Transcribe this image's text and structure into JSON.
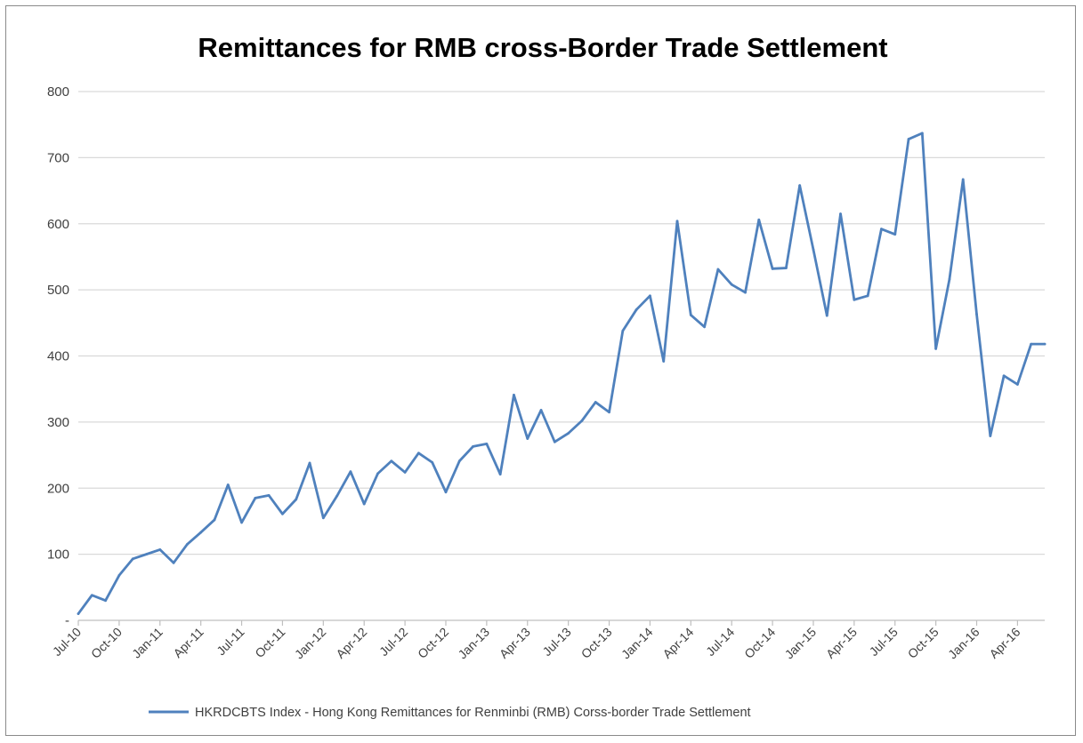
{
  "chart_data": {
    "type": "line",
    "title": "Remittances for RMB cross-Border Trade Settlement",
    "ylim": [
      0,
      800
    ],
    "yticks": [
      {
        "value": 0,
        "label": "-"
      },
      {
        "value": 100,
        "label": "100"
      },
      {
        "value": 200,
        "label": "200"
      },
      {
        "value": 300,
        "label": "300"
      },
      {
        "value": 400,
        "label": "400"
      },
      {
        "value": 500,
        "label": "500"
      },
      {
        "value": 600,
        "label": "600"
      },
      {
        "value": 700,
        "label": "700"
      },
      {
        "value": 800,
        "label": "800"
      }
    ],
    "grid": true,
    "legend_position": "bottom",
    "x_tick_labels": [
      "Jul-10",
      "Oct-10",
      "Jan-11",
      "Apr-11",
      "Jul-11",
      "Oct-11",
      "Jan-12",
      "Apr-12",
      "Jul-12",
      "Oct-12",
      "Jan-13",
      "Apr-13",
      "Jul-13",
      "Oct-13",
      "Jan-14",
      "Apr-14",
      "Jul-14",
      "Oct-14",
      "Jan-15",
      "Apr-15",
      "Jul-15",
      "Oct-15",
      "Jan-16",
      "Apr-16"
    ],
    "x": [
      "Jul-10",
      "Aug-10",
      "Sep-10",
      "Oct-10",
      "Nov-10",
      "Dec-10",
      "Jan-11",
      "Feb-11",
      "Mar-11",
      "Apr-11",
      "May-11",
      "Jun-11",
      "Jul-11",
      "Aug-11",
      "Sep-11",
      "Oct-11",
      "Nov-11",
      "Dec-11",
      "Jan-12",
      "Feb-12",
      "Mar-12",
      "Apr-12",
      "May-12",
      "Jun-12",
      "Jul-12",
      "Aug-12",
      "Sep-12",
      "Oct-12",
      "Nov-12",
      "Dec-12",
      "Jan-13",
      "Feb-13",
      "Mar-13",
      "Apr-13",
      "May-13",
      "Jun-13",
      "Jul-13",
      "Aug-13",
      "Sep-13",
      "Oct-13",
      "Nov-13",
      "Dec-13",
      "Jan-14",
      "Feb-14",
      "Mar-14",
      "Apr-14",
      "May-14",
      "Jun-14",
      "Jul-14",
      "Aug-14",
      "Sep-14",
      "Oct-14",
      "Nov-14",
      "Dec-14",
      "Jan-15",
      "Feb-15",
      "Mar-15",
      "Apr-15",
      "May-15",
      "Jun-15",
      "Jul-15",
      "Aug-15",
      "Sep-15",
      "Oct-15",
      "Nov-15",
      "Dec-15",
      "Jan-16",
      "Feb-16",
      "Mar-16",
      "Apr-16",
      "May-16",
      "Jun-16"
    ],
    "series": [
      {
        "name": "HKRDCBTS Index - Hong Kong Remittances for Renminbi (RMB) Corss-border Trade Settlement",
        "color": "#4f81bd",
        "values": [
          10,
          38,
          30,
          68,
          93,
          100,
          107,
          87,
          115,
          133,
          152,
          205,
          148,
          185,
          189,
          161,
          183,
          238,
          155,
          188,
          225,
          176,
          222,
          241,
          224,
          253,
          239,
          194,
          241,
          263,
          267,
          221,
          341,
          275,
          318,
          270,
          283,
          302,
          330,
          315,
          438,
          470,
          491,
          392,
          604,
          462,
          444,
          531,
          508,
          496,
          606,
          532,
          533,
          658,
          561,
          461,
          615,
          485,
          491,
          592,
          584,
          728,
          737,
          411,
          516,
          667,
          463,
          279,
          370,
          357,
          418,
          418
        ]
      }
    ]
  }
}
